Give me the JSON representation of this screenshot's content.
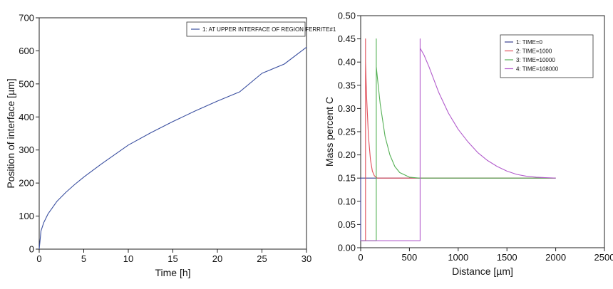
{
  "chart_data": [
    {
      "type": "line",
      "xlabel": "Time [h]",
      "ylabel": "Position of interface [µm]",
      "xlim": [
        0,
        30
      ],
      "ylim": [
        0,
        700
      ],
      "xticks": [
        0,
        5,
        10,
        15,
        20,
        25,
        30
      ],
      "yticks": [
        0,
        100,
        200,
        300,
        400,
        500,
        600,
        700
      ],
      "grid": false,
      "legend": "top-right",
      "series": [
        {
          "name": "1:  AT UPPER INTERFACE OF REGION FERRITE#1",
          "color": "#3a4fa0",
          "x": [
            0,
            0.2,
            0.5,
            1,
            2,
            3,
            4,
            5,
            7,
            10,
            12.5,
            15,
            17.5,
            20,
            22.5,
            25,
            27.5,
            30
          ],
          "y": [
            0,
            55,
            80,
            107,
            145,
            172,
            196,
            218,
            258,
            315,
            352,
            386,
            418,
            448,
            476,
            532,
            560,
            611
          ]
        }
      ]
    },
    {
      "type": "line",
      "xlabel": "Distance [µm]",
      "ylabel": "Mass percent C",
      "xlim": [
        0,
        2500
      ],
      "ylim": [
        0,
        0.5
      ],
      "xticks": [
        0,
        500,
        1000,
        1500,
        2000,
        2500
      ],
      "yticks": [
        0.0,
        0.05,
        0.1,
        0.15,
        0.2,
        0.25,
        0.3,
        0.35,
        0.4,
        0.45,
        0.5
      ],
      "grid": false,
      "legend": "top-right",
      "series": [
        {
          "name": "1:  TIME=0",
          "color": "#3a3f8f",
          "x": [
            0,
            0,
            2000
          ],
          "y": [
            0.015,
            0.15,
            0.15
          ]
        },
        {
          "name": "2:  TIME=1000",
          "color": "#e0505a",
          "x": [
            0,
            50,
            50,
            50,
            60,
            80,
            100,
            120,
            140,
            170,
            2000
          ],
          "y": [
            0.015,
            0.015,
            0.45,
            0.4,
            0.33,
            0.24,
            0.19,
            0.165,
            0.155,
            0.15,
            0.15
          ]
        },
        {
          "name": "3:  TIME=10000",
          "color": "#55b055",
          "x": [
            0,
            160,
            160,
            160,
            175,
            200,
            250,
            300,
            350,
            400,
            500,
            600,
            2000
          ],
          "y": [
            0.015,
            0.015,
            0.45,
            0.39,
            0.36,
            0.31,
            0.24,
            0.2,
            0.175,
            0.162,
            0.152,
            0.15,
            0.15
          ]
        },
        {
          "name": "4:  TIME=108000",
          "color": "#b25ccc",
          "x": [
            0,
            610,
            610,
            610,
            650,
            700,
            800,
            900,
            1000,
            1100,
            1200,
            1300,
            1400,
            1500,
            1600,
            1700,
            1800,
            2000
          ],
          "y": [
            0.015,
            0.015,
            0.45,
            0.43,
            0.415,
            0.39,
            0.335,
            0.29,
            0.255,
            0.228,
            0.205,
            0.188,
            0.175,
            0.165,
            0.158,
            0.154,
            0.152,
            0.15
          ]
        }
      ]
    }
  ]
}
